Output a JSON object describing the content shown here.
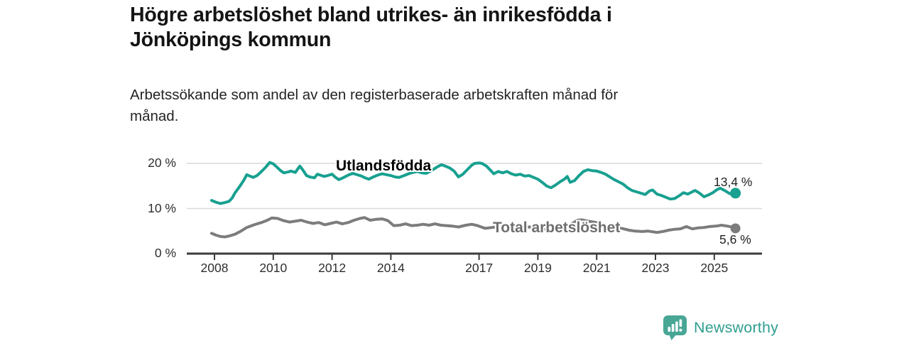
{
  "title": {
    "lines": [
      "Högre arbetslöshet bland utrikes- än inrikesfödda i",
      "Jönköpings kommun"
    ]
  },
  "subtitle": {
    "lines": [
      "Arbetssökande som andel av den registerbaserade arbetskraften månad för",
      "månad."
    ]
  },
  "branding": {
    "name": "Newsworthy",
    "text_color": "#2f9e8f",
    "icon_color": "#48a695"
  },
  "chart_data": {
    "type": "line",
    "title": "Högre arbetslöshet bland utrikes- än inrikesfödda i Jönköpings kommun",
    "subtitle": "Arbetssökande som andel av den registerbaserade arbetskraften månad för månad.",
    "xlabel": "",
    "ylabel": "",
    "xlim": [
      2007.1,
      2026.6
    ],
    "ylim": [
      0,
      21.6
    ],
    "grid": "horizontal",
    "grid_color": "#d9d9d9",
    "axis_color": "#3b3b3b",
    "x_ticks": [
      2008,
      2010,
      2012,
      2014,
      2017,
      2019,
      2021,
      2023,
      2025
    ],
    "y_ticks": [
      {
        "value": 0,
        "label": "0 %"
      },
      {
        "value": 10,
        "label": "10 %"
      },
      {
        "value": 20,
        "label": "20 %"
      }
    ],
    "series": [
      {
        "name": "Utlandsfödda",
        "color": "#18a090",
        "end_label": "13,4 %",
        "end_value": 13.4,
        "points": [
          [
            2007.9,
            11.8
          ],
          [
            2008.05,
            11.4
          ],
          [
            2008.2,
            11.1
          ],
          [
            2008.35,
            11.3
          ],
          [
            2008.5,
            11.6
          ],
          [
            2008.6,
            12.3
          ],
          [
            2008.7,
            13.5
          ],
          [
            2008.85,
            14.8
          ],
          [
            2009.0,
            16.3
          ],
          [
            2009.1,
            17.5
          ],
          [
            2009.2,
            17.2
          ],
          [
            2009.32,
            16.9
          ],
          [
            2009.45,
            17.3
          ],
          [
            2009.6,
            18.2
          ],
          [
            2009.75,
            19.2
          ],
          [
            2009.88,
            20.2
          ],
          [
            2010.0,
            19.9
          ],
          [
            2010.12,
            19.2
          ],
          [
            2010.25,
            18.4
          ],
          [
            2010.36,
            17.9
          ],
          [
            2010.5,
            18.1
          ],
          [
            2010.6,
            18.3
          ],
          [
            2010.75,
            18.0
          ],
          [
            2010.9,
            19.4
          ],
          [
            2011.0,
            18.6
          ],
          [
            2011.13,
            17.3
          ],
          [
            2011.25,
            17.0
          ],
          [
            2011.4,
            16.8
          ],
          [
            2011.5,
            17.6
          ],
          [
            2011.6,
            17.4
          ],
          [
            2011.73,
            17.1
          ],
          [
            2011.85,
            17.3
          ],
          [
            2012.0,
            17.6
          ],
          [
            2012.1,
            17.0
          ],
          [
            2012.23,
            16.4
          ],
          [
            2012.4,
            16.9
          ],
          [
            2012.55,
            17.4
          ],
          [
            2012.7,
            17.8
          ],
          [
            2012.85,
            17.5
          ],
          [
            2013.0,
            17.2
          ],
          [
            2013.12,
            16.8
          ],
          [
            2013.25,
            16.5
          ],
          [
            2013.4,
            17.0
          ],
          [
            2013.55,
            17.4
          ],
          [
            2013.7,
            17.7
          ],
          [
            2013.85,
            17.5
          ],
          [
            2014.0,
            17.3
          ],
          [
            2014.15,
            17.0
          ],
          [
            2014.28,
            16.9
          ],
          [
            2014.45,
            17.3
          ],
          [
            2014.6,
            17.7
          ],
          [
            2014.75,
            18.0
          ],
          [
            2014.9,
            18.2
          ],
          [
            2015.05,
            17.9
          ],
          [
            2015.2,
            17.8
          ],
          [
            2015.35,
            18.3
          ],
          [
            2015.5,
            18.9
          ],
          [
            2015.6,
            19.3
          ],
          [
            2015.72,
            19.7
          ],
          [
            2015.85,
            19.4
          ],
          [
            2016.0,
            19.0
          ],
          [
            2016.15,
            18.3
          ],
          [
            2016.3,
            17.0
          ],
          [
            2016.45,
            17.6
          ],
          [
            2016.6,
            18.6
          ],
          [
            2016.75,
            19.6
          ],
          [
            2016.85,
            20.0
          ],
          [
            2017.0,
            20.1
          ],
          [
            2017.1,
            20.0
          ],
          [
            2017.25,
            19.4
          ],
          [
            2017.4,
            18.4
          ],
          [
            2017.5,
            17.7
          ],
          [
            2017.65,
            18.2
          ],
          [
            2017.8,
            17.9
          ],
          [
            2017.95,
            18.2
          ],
          [
            2018.1,
            17.7
          ],
          [
            2018.25,
            17.4
          ],
          [
            2018.4,
            17.6
          ],
          [
            2018.55,
            17.2
          ],
          [
            2018.7,
            17.3
          ],
          [
            2018.85,
            16.9
          ],
          [
            2019.0,
            16.5
          ],
          [
            2019.15,
            15.8
          ],
          [
            2019.3,
            15.0
          ],
          [
            2019.45,
            14.6
          ],
          [
            2019.6,
            15.2
          ],
          [
            2019.75,
            15.9
          ],
          [
            2019.9,
            16.5
          ],
          [
            2020.0,
            17.1
          ],
          [
            2020.1,
            15.8
          ],
          [
            2020.25,
            16.2
          ],
          [
            2020.4,
            17.3
          ],
          [
            2020.55,
            18.2
          ],
          [
            2020.7,
            18.6
          ],
          [
            2020.85,
            18.4
          ],
          [
            2021.0,
            18.3
          ],
          [
            2021.15,
            18.0
          ],
          [
            2021.3,
            17.6
          ],
          [
            2021.45,
            17.0
          ],
          [
            2021.6,
            16.4
          ],
          [
            2021.75,
            15.9
          ],
          [
            2021.9,
            15.4
          ],
          [
            2022.05,
            14.6
          ],
          [
            2022.2,
            14.0
          ],
          [
            2022.35,
            13.7
          ],
          [
            2022.5,
            13.4
          ],
          [
            2022.65,
            13.1
          ],
          [
            2022.8,
            13.9
          ],
          [
            2022.9,
            14.1
          ],
          [
            2023.05,
            13.2
          ],
          [
            2023.2,
            12.9
          ],
          [
            2023.35,
            12.5
          ],
          [
            2023.5,
            12.1
          ],
          [
            2023.65,
            12.2
          ],
          [
            2023.8,
            12.8
          ],
          [
            2023.95,
            13.5
          ],
          [
            2024.1,
            13.2
          ],
          [
            2024.25,
            13.7
          ],
          [
            2024.35,
            14.0
          ],
          [
            2024.5,
            13.4
          ],
          [
            2024.65,
            12.6
          ],
          [
            2024.8,
            13.0
          ],
          [
            2024.95,
            13.5
          ],
          [
            2025.1,
            14.2
          ],
          [
            2025.2,
            14.5
          ],
          [
            2025.35,
            14.0
          ],
          [
            2025.5,
            13.4
          ],
          [
            2025.6,
            13.1
          ],
          [
            2025.72,
            13.4
          ]
        ]
      },
      {
        "name": "Total arbetslöshet",
        "color": "#7c7c7c",
        "end_label": "5,6 %",
        "end_value": 5.6,
        "points": [
          [
            2007.9,
            4.5
          ],
          [
            2008.05,
            4.1
          ],
          [
            2008.2,
            3.8
          ],
          [
            2008.35,
            3.7
          ],
          [
            2008.5,
            3.9
          ],
          [
            2008.7,
            4.3
          ],
          [
            2008.9,
            5.0
          ],
          [
            2009.1,
            5.8
          ],
          [
            2009.35,
            6.4
          ],
          [
            2009.6,
            6.9
          ],
          [
            2009.8,
            7.4
          ],
          [
            2009.95,
            7.9
          ],
          [
            2010.15,
            7.8
          ],
          [
            2010.35,
            7.3
          ],
          [
            2010.55,
            7.0
          ],
          [
            2010.75,
            7.2
          ],
          [
            2010.95,
            7.4
          ],
          [
            2011.15,
            7.0
          ],
          [
            2011.35,
            6.7
          ],
          [
            2011.55,
            6.9
          ],
          [
            2011.75,
            6.4
          ],
          [
            2011.95,
            6.7
          ],
          [
            2012.15,
            7.0
          ],
          [
            2012.35,
            6.6
          ],
          [
            2012.55,
            6.9
          ],
          [
            2012.75,
            7.4
          ],
          [
            2012.95,
            7.8
          ],
          [
            2013.1,
            8.0
          ],
          [
            2013.3,
            7.4
          ],
          [
            2013.5,
            7.6
          ],
          [
            2013.7,
            7.7
          ],
          [
            2013.9,
            7.3
          ],
          [
            2014.1,
            6.2
          ],
          [
            2014.3,
            6.3
          ],
          [
            2014.5,
            6.6
          ],
          [
            2014.7,
            6.2
          ],
          [
            2014.9,
            6.3
          ],
          [
            2015.1,
            6.5
          ],
          [
            2015.3,
            6.3
          ],
          [
            2015.5,
            6.6
          ],
          [
            2015.7,
            6.3
          ],
          [
            2015.9,
            6.2
          ],
          [
            2016.1,
            6.1
          ],
          [
            2016.3,
            5.9
          ],
          [
            2016.55,
            6.3
          ],
          [
            2016.75,
            6.5
          ],
          [
            2016.95,
            6.2
          ],
          [
            2017.2,
            5.6
          ],
          [
            2017.45,
            5.8
          ],
          [
            2017.7,
            6.0
          ],
          [
            2017.95,
            6.1
          ],
          [
            2018.2,
            5.9
          ],
          [
            2018.45,
            5.8
          ],
          [
            2018.7,
            5.9
          ],
          [
            2018.95,
            5.7
          ],
          [
            2019.2,
            5.5
          ],
          [
            2019.45,
            5.4
          ],
          [
            2019.7,
            5.6
          ],
          [
            2019.95,
            5.9
          ],
          [
            2020.15,
            6.6
          ],
          [
            2020.35,
            7.4
          ],
          [
            2020.5,
            7.5
          ],
          [
            2020.7,
            7.2
          ],
          [
            2020.9,
            7.0
          ],
          [
            2021.1,
            6.7
          ],
          [
            2021.35,
            6.3
          ],
          [
            2021.6,
            6.0
          ],
          [
            2021.85,
            5.6
          ],
          [
            2022.1,
            5.2
          ],
          [
            2022.3,
            5.0
          ],
          [
            2022.55,
            4.9
          ],
          [
            2022.75,
            5.0
          ],
          [
            2022.95,
            4.8
          ],
          [
            2023.05,
            4.7
          ],
          [
            2023.25,
            4.9
          ],
          [
            2023.45,
            5.2
          ],
          [
            2023.65,
            5.4
          ],
          [
            2023.85,
            5.5
          ],
          [
            2024.05,
            6.0
          ],
          [
            2024.25,
            5.5
          ],
          [
            2024.45,
            5.7
          ],
          [
            2024.65,
            5.8
          ],
          [
            2024.85,
            6.0
          ],
          [
            2025.05,
            6.1
          ],
          [
            2025.25,
            6.3
          ],
          [
            2025.45,
            6.1
          ],
          [
            2025.6,
            5.9
          ],
          [
            2025.72,
            5.6
          ]
        ]
      }
    ]
  }
}
